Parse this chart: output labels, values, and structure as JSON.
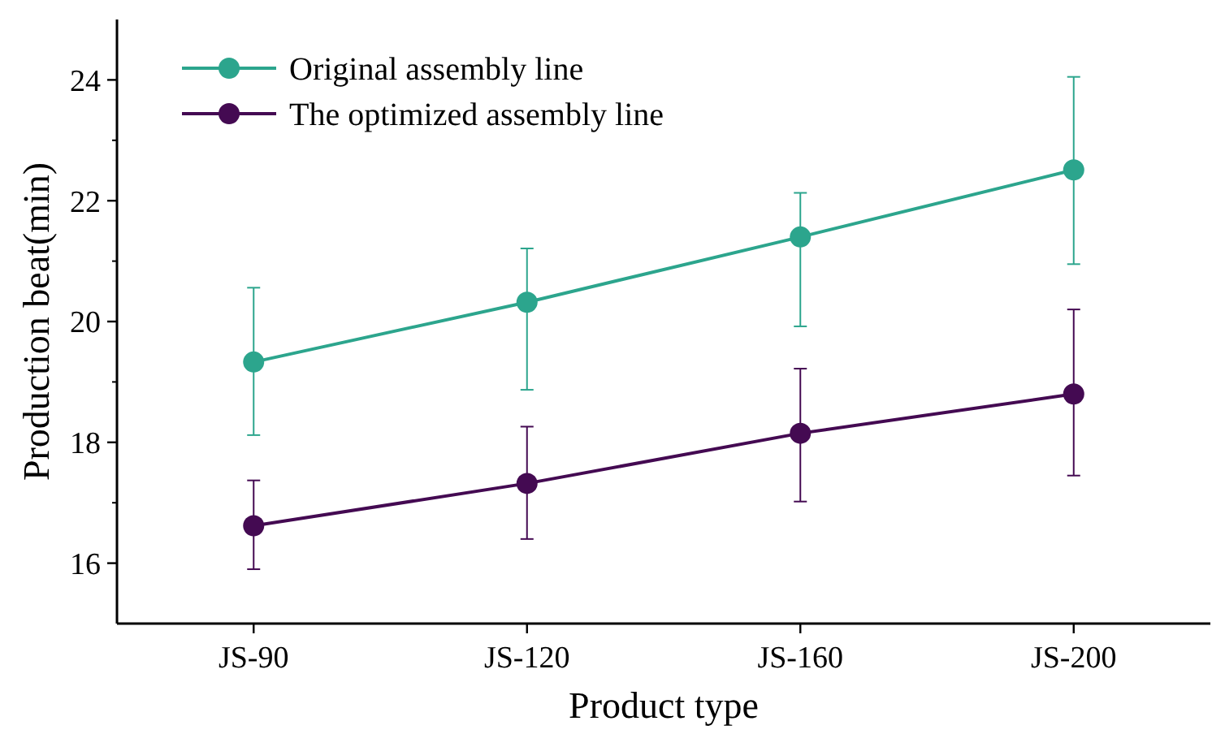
{
  "chart_data": {
    "type": "line",
    "xlabel": "Product type",
    "ylabel": "Production beat(min)",
    "categories": [
      "JS-90",
      "JS-120",
      "JS-160",
      "JS-200"
    ],
    "series": [
      {
        "name": "Original assembly line",
        "color": "#2ca58d",
        "values": [
          19.33,
          20.32,
          21.4,
          22.51
        ],
        "errors": [
          [
            18.12,
            20.56
          ],
          [
            18.87,
            21.21
          ],
          [
            19.92,
            22.13
          ],
          [
            20.95,
            24.05
          ]
        ]
      },
      {
        "name": "The optimized assembly line",
        "color": "#440a52",
        "values": [
          16.62,
          17.32,
          18.15,
          18.8
        ],
        "errors": [
          [
            15.9,
            17.37
          ],
          [
            16.4,
            18.26
          ],
          [
            17.02,
            19.22
          ],
          [
            17.45,
            20.2
          ]
        ]
      }
    ],
    "ylim": [
      15,
      25
    ],
    "yticks": [
      16,
      18,
      20,
      22,
      24
    ],
    "marker": "circle",
    "line_style": "solid",
    "legend": "top left",
    "grid": false
  }
}
